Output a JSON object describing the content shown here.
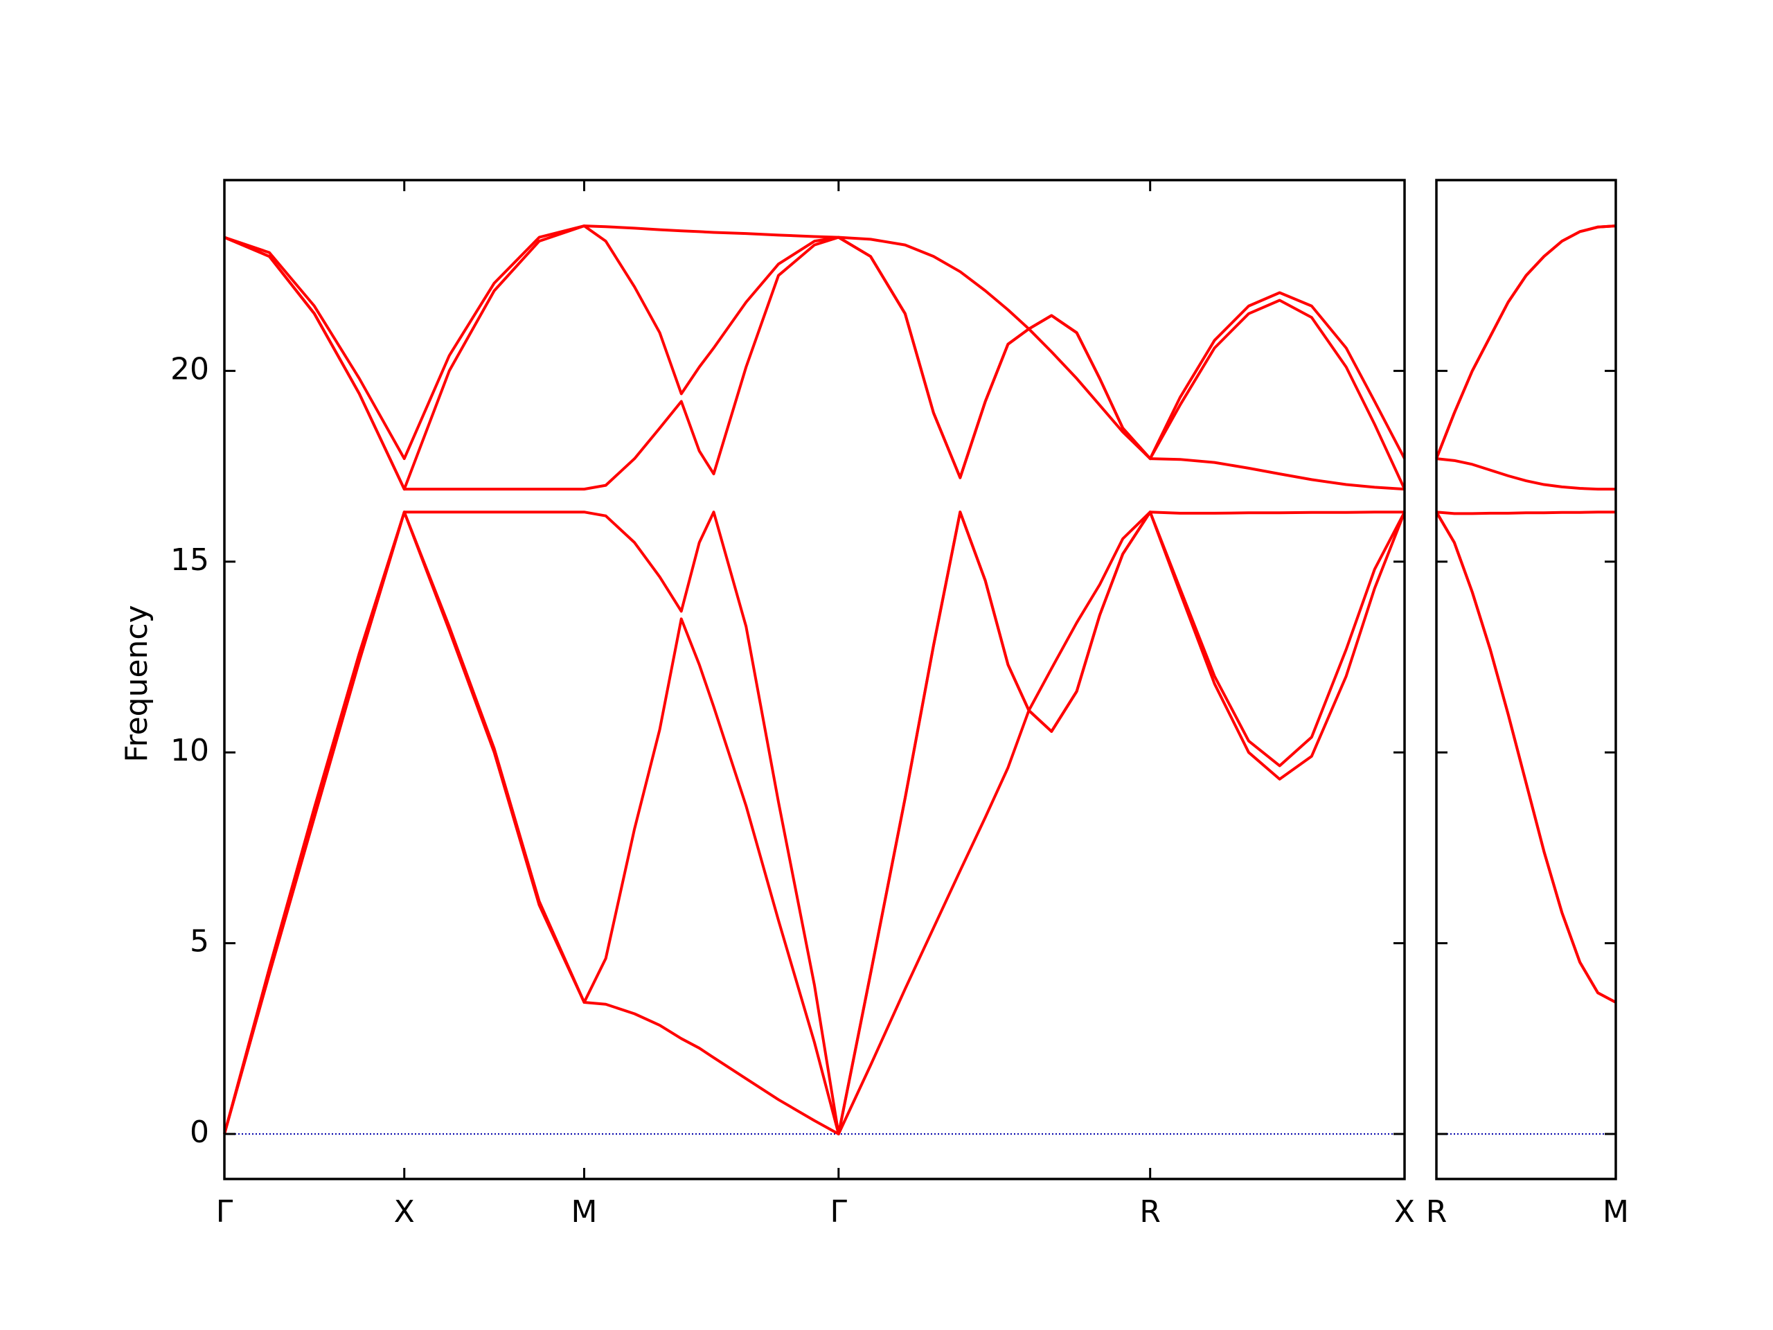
{
  "chart_data": [
    {
      "type": "line",
      "ylabel": "Frequency",
      "x": [
        0,
        0.125,
        0.25,
        0.375,
        0.5,
        0.625,
        0.75,
        0.875,
        1.0,
        1.06,
        1.14,
        1.21,
        1.27,
        1.32,
        1.36,
        1.45,
        1.54,
        1.64,
        1.7071,
        1.796,
        1.892,
        1.971,
        2.045,
        2.115,
        2.178,
        2.236,
        2.299,
        2.369,
        2.433,
        2.497,
        2.5731,
        2.656,
        2.752,
        2.847,
        2.933,
        3.022,
        3.118,
        3.197,
        3.2802
      ],
      "series": [
        {
          "color": "#ff0000",
          "values": [
            0,
            4.2,
            8.3,
            12.4,
            16.3,
            13.2,
            10.0,
            6.0,
            3.45,
            3.4,
            3.15,
            2.85,
            2.5,
            2.25,
            2.0,
            1.45,
            0.9,
            0.35,
            0,
            1.8,
            3.8,
            5.4,
            6.9,
            8.3,
            9.6,
            11.1,
            10.55,
            11.6,
            13.6,
            15.2,
            16.3,
            14.2,
            11.8,
            10.0,
            9.3,
            9.9,
            12.0,
            14.3,
            16.3
          ]
        },
        {
          "color": "#ff0000",
          "values": [
            0,
            4.2,
            8.3,
            12.4,
            16.3,
            13.3,
            10.1,
            6.1,
            3.45,
            4.6,
            8.0,
            10.6,
            13.5,
            12.3,
            11.2,
            8.6,
            5.6,
            2.4,
            0,
            4.2,
            8.8,
            12.8,
            16.3,
            14.5,
            12.3,
            11.1,
            10.55,
            11.6,
            13.6,
            15.2,
            16.3,
            14.3,
            12.0,
            10.3,
            9.65,
            10.4,
            12.7,
            14.8,
            16.3
          ]
        },
        {
          "color": "#ff0000",
          "values": [
            0,
            4.35,
            8.55,
            12.6,
            16.3,
            16.3,
            16.3,
            16.3,
            16.3,
            16.2,
            15.5,
            14.6,
            13.7,
            15.5,
            16.3,
            13.3,
            8.7,
            3.9,
            0,
            4.2,
            8.8,
            12.8,
            16.3,
            14.5,
            12.3,
            11.1,
            12.2,
            13.4,
            14.4,
            15.6,
            16.3,
            16.27,
            16.27,
            16.28,
            16.28,
            16.29,
            16.29,
            16.3,
            16.3
          ]
        },
        {
          "color": "#ff0000",
          "values": [
            23.5,
            23.0,
            21.5,
            19.4,
            16.9,
            16.9,
            16.9,
            16.9,
            16.9,
            17.0,
            17.7,
            18.5,
            19.2,
            17.9,
            17.3,
            20.1,
            22.5,
            23.3,
            23.5,
            23.0,
            21.5,
            18.9,
            17.2,
            19.2,
            20.7,
            21.1,
            20.5,
            19.8,
            19.1,
            18.4,
            17.7,
            17.68,
            17.6,
            17.45,
            17.3,
            17.15,
            17.02,
            16.95,
            16.9
          ]
        },
        {
          "color": "#ff0000",
          "values": [
            23.5,
            23.0,
            21.5,
            19.4,
            16.9,
            20.0,
            22.1,
            23.4,
            23.8,
            23.4,
            22.2,
            21.0,
            19.4,
            20.1,
            20.6,
            21.8,
            22.8,
            23.4,
            23.5,
            23.0,
            21.5,
            18.9,
            17.2,
            19.2,
            20.7,
            21.1,
            21.45,
            21.0,
            19.8,
            18.5,
            17.7,
            19.1,
            20.6,
            21.5,
            21.85,
            21.4,
            20.1,
            18.6,
            16.9
          ]
        },
        {
          "color": "#ff0000",
          "values": [
            23.5,
            23.1,
            21.7,
            19.8,
            17.7,
            20.4,
            22.3,
            23.5,
            23.8,
            23.78,
            23.74,
            23.7,
            23.67,
            23.65,
            23.63,
            23.6,
            23.56,
            23.52,
            23.5,
            23.45,
            23.3,
            23.0,
            22.6,
            22.1,
            21.6,
            21.1,
            21.45,
            21.0,
            19.8,
            18.5,
            17.7,
            19.3,
            20.8,
            21.7,
            22.05,
            21.7,
            20.6,
            19.2,
            17.7
          ]
        }
      ],
      "hline": {
        "value": 0,
        "color": "#0000aa"
      },
      "xlim": [
        0,
        3.2802
      ],
      "xticks": [
        {
          "value": 0,
          "label": "Γ"
        },
        {
          "value": 0.5,
          "label": "X"
        },
        {
          "value": 1.0,
          "label": "M"
        },
        {
          "value": 1.7071,
          "label": "Γ"
        },
        {
          "value": 2.5731,
          "label": "R"
        },
        {
          "value": 3.2802,
          "label": "X"
        }
      ],
      "ylim": [
        -1.18,
        25.0
      ],
      "yticks": [
        0,
        5,
        10,
        15,
        20
      ]
    },
    {
      "type": "line",
      "x": [
        0,
        0.05,
        0.1,
        0.15,
        0.2,
        0.25,
        0.3,
        0.35,
        0.4,
        0.45,
        0.5
      ],
      "series": [
        {
          "color": "#ff0000",
          "values": [
            16.3,
            15.5,
            14.2,
            12.7,
            11.0,
            9.2,
            7.4,
            5.8,
            4.5,
            3.7,
            3.45
          ]
        },
        {
          "color": "#ff0000",
          "values": [
            16.3,
            15.5,
            14.2,
            12.7,
            11.0,
            9.2,
            7.4,
            5.8,
            4.5,
            3.7,
            3.45
          ]
        },
        {
          "color": "#ff0000",
          "values": [
            16.3,
            16.26,
            16.26,
            16.27,
            16.27,
            16.28,
            16.28,
            16.29,
            16.29,
            16.3,
            16.3
          ]
        },
        {
          "color": "#ff0000",
          "values": [
            17.7,
            17.65,
            17.55,
            17.4,
            17.25,
            17.12,
            17.02,
            16.96,
            16.92,
            16.9,
            16.9
          ]
        },
        {
          "color": "#ff0000",
          "values": [
            17.7,
            18.9,
            20.0,
            20.9,
            21.8,
            22.5,
            23.0,
            23.4,
            23.65,
            23.77,
            23.8
          ]
        },
        {
          "color": "#ff0000",
          "values": [
            17.7,
            18.9,
            20.0,
            20.9,
            21.8,
            22.5,
            23.0,
            23.4,
            23.65,
            23.77,
            23.8
          ]
        }
      ],
      "hline": {
        "value": 0,
        "color": "#0000aa"
      },
      "xlim": [
        0,
        0.5
      ],
      "xticks": [
        {
          "value": 0,
          "label": "R"
        },
        {
          "value": 0.5,
          "label": "M"
        }
      ],
      "ylim": [
        -1.18,
        25.0
      ]
    }
  ]
}
